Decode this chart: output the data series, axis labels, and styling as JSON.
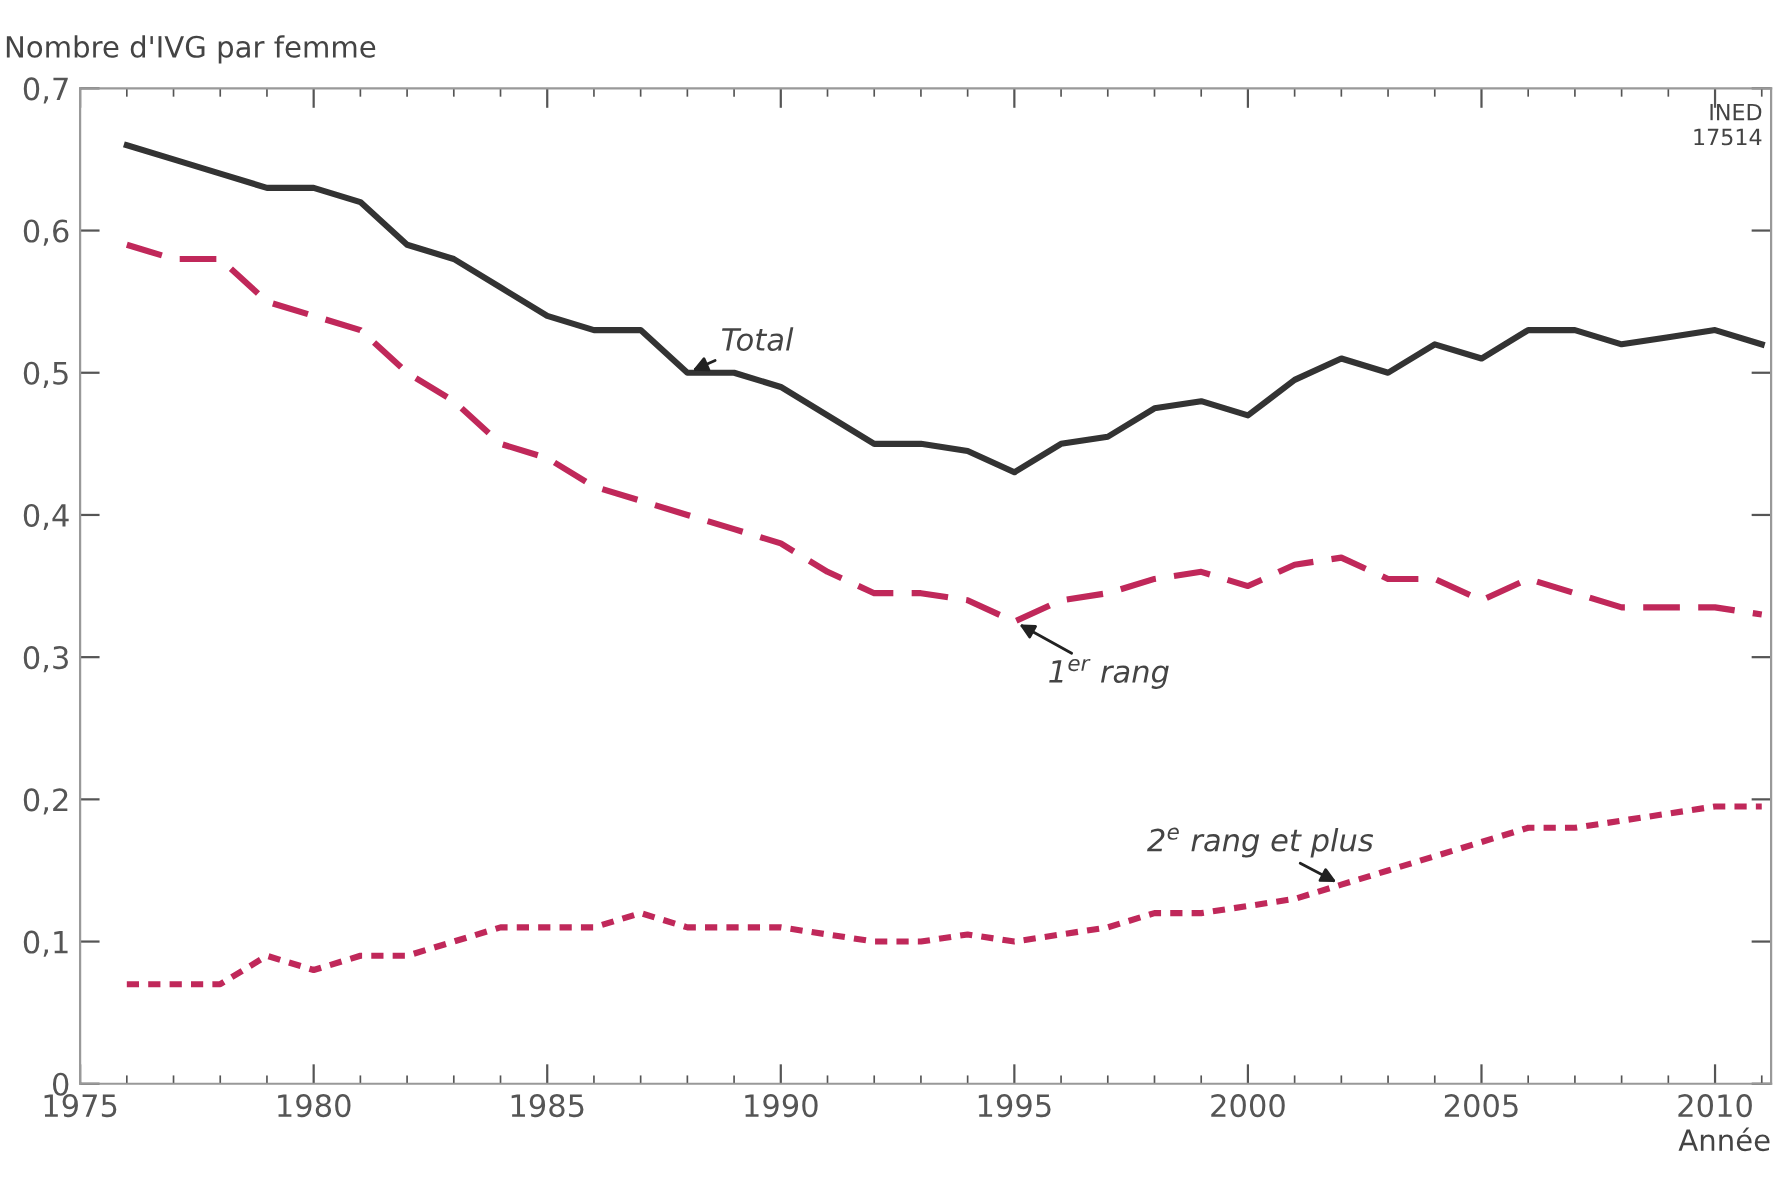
{
  "chart_data": {
    "type": "line",
    "ylabel": "Nombre d'IVG par femme",
    "xlabel": "Année",
    "x": [
      1976,
      1977,
      1978,
      1979,
      1980,
      1981,
      1982,
      1983,
      1984,
      1985,
      1986,
      1987,
      1988,
      1989,
      1990,
      1991,
      1992,
      1993,
      1994,
      1995,
      1996,
      1997,
      1998,
      1999,
      2000,
      2001,
      2002,
      2003,
      2004,
      2005,
      2006,
      2007,
      2008,
      2009,
      2010,
      2011
    ],
    "series": [
      {
        "name": "Total",
        "color": "#333333",
        "line_style": "solid",
        "values": [
          0.66,
          0.65,
          0.64,
          0.63,
          0.63,
          0.62,
          0.59,
          0.58,
          0.56,
          0.54,
          0.53,
          0.53,
          0.5,
          0.5,
          0.49,
          0.47,
          0.45,
          0.45,
          0.445,
          0.43,
          0.45,
          0.455,
          0.475,
          0.48,
          0.47,
          0.495,
          0.51,
          0.5,
          0.52,
          0.51,
          0.53,
          0.53,
          0.52,
          0.525,
          0.53,
          0.52
        ]
      },
      {
        "name": "1$^{er}$ rang",
        "color": "#c0285a",
        "line_style": "dashed",
        "values": [
          0.59,
          0.58,
          0.58,
          0.55,
          0.54,
          0.53,
          0.5,
          0.48,
          0.45,
          0.44,
          0.42,
          0.41,
          0.4,
          0.39,
          0.38,
          0.36,
          0.345,
          0.345,
          0.34,
          0.325,
          0.34,
          0.345,
          0.355,
          0.36,
          0.35,
          0.365,
          0.37,
          0.355,
          0.355,
          0.34,
          0.355,
          0.345,
          0.335,
          0.335,
          0.335,
          0.33
        ]
      },
      {
        "name": "2$^{e}$ rang et plus",
        "color": "#c0285a",
        "line_style": "dotted",
        "values": [
          0.07,
          0.07,
          0.07,
          0.09,
          0.08,
          0.09,
          0.09,
          0.1,
          0.11,
          0.11,
          0.11,
          0.12,
          0.11,
          0.11,
          0.11,
          0.105,
          0.1,
          0.1,
          0.105,
          0.1,
          0.105,
          0.11,
          0.12,
          0.12,
          0.125,
          0.13,
          0.14,
          0.15,
          0.16,
          0.17,
          0.18,
          0.18,
          0.185,
          0.19,
          0.195,
          0.195
        ]
      }
    ],
    "annotations": [
      "INED\n17514"
    ],
    "xlim": [
      1975,
      2011.2
    ],
    "ylim": [
      0,
      0.7
    ],
    "xticks": [
      1975,
      1980,
      1985,
      1990,
      1995,
      2000,
      2005,
      2010
    ],
    "yticks": [
      {
        "value": 0,
        "label": "0"
      },
      {
        "value": 0.1,
        "label": "0,1"
      },
      {
        "value": 0.2,
        "label": "0,2"
      },
      {
        "value": 0.3,
        "label": "0,3"
      },
      {
        "value": 0.4,
        "label": "0,4"
      },
      {
        "value": 0.5,
        "label": "0,5"
      },
      {
        "value": 0.6,
        "label": "0,6"
      },
      {
        "value": 0.7,
        "label": "0,7"
      }
    ],
    "grid": false,
    "legend": false,
    "marker": "none"
  }
}
